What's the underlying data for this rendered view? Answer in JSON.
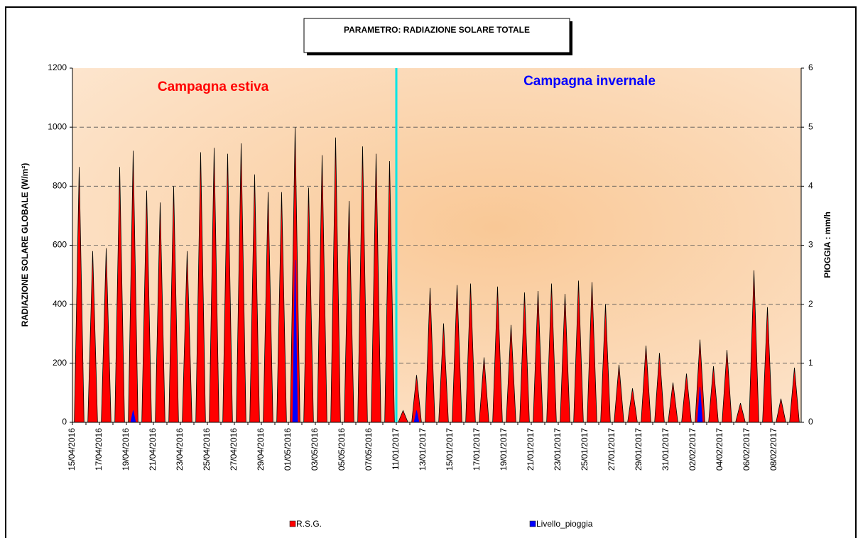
{
  "chart_data": {
    "type": "area",
    "title": "PARAMETRO: RADIAZIONE SOLARE TOTALE",
    "y_label": "RADIAZIONE SOLARE GLOBALE (W/m²)",
    "y2_label": "PIOGGIA : mm/h",
    "annotations": [
      {
        "text": "Campagna estiva",
        "color": "#ff0000"
      },
      {
        "text": "Campagna invernale",
        "color": "#0000ff"
      }
    ],
    "categories": [
      "15/04/2016",
      null,
      "17/04/2016",
      null,
      "19/04/2016",
      null,
      "21/04/2016",
      null,
      "23/04/2016",
      null,
      "25/04/2016",
      null,
      "27/04/2016",
      null,
      "29/04/2016",
      null,
      "01/05/2016",
      null,
      "03/05/2016",
      null,
      "05/05/2016",
      null,
      "07/05/2016",
      null,
      "11/01/2017",
      null,
      "13/01/2017",
      null,
      "15/01/2017",
      null,
      "17/01/2017",
      null,
      "19/01/2017",
      null,
      "21/01/2017",
      null,
      "23/01/2017",
      null,
      "25/01/2017",
      null,
      "27/01/2017",
      null,
      "29/01/2017",
      null,
      "31/01/2017",
      null,
      "02/02/2017",
      null,
      "04/02/2017",
      null,
      "06/02/2017",
      null,
      "08/02/2017",
      null
    ],
    "series": [
      {
        "name": "R.S.G.",
        "color": "#ff0000",
        "values": [
          865,
          580,
          590,
          865,
          920,
          785,
          745,
          800,
          580,
          915,
          930,
          910,
          945,
          840,
          780,
          780,
          1000,
          795,
          905,
          965,
          750,
          935,
          910,
          885,
          40,
          160,
          455,
          335,
          465,
          470,
          220,
          460,
          330,
          440,
          445,
          470,
          435,
          480,
          475,
          400,
          195,
          115,
          260,
          235,
          135,
          165,
          280,
          190,
          245,
          65,
          515,
          390,
          80,
          185
        ]
      },
      {
        "name": "Livello_pioggia",
        "color": "#0000ff",
        "axis": "y2",
        "values": [
          0,
          0,
          0,
          0,
          0.2,
          0,
          0,
          0,
          0,
          0,
          0,
          0,
          0,
          0,
          0,
          0,
          2.75,
          0,
          0,
          0,
          0,
          0,
          0,
          0,
          0,
          0.2,
          0,
          0,
          0,
          0,
          0,
          0,
          0,
          0,
          0,
          0,
          0,
          0,
          0,
          0,
          0,
          0,
          0,
          0,
          0,
          0,
          0.6,
          0,
          0,
          0,
          0,
          0,
          0,
          0
        ]
      }
    ],
    "ylim": [
      0,
      1200
    ],
    "yticks": [
      0,
      200,
      400,
      600,
      800,
      1000,
      1200
    ],
    "y2lim": [
      0,
      6
    ],
    "y2ticks": [
      0,
      1,
      2,
      3,
      4,
      5,
      6
    ],
    "grid": true
  }
}
